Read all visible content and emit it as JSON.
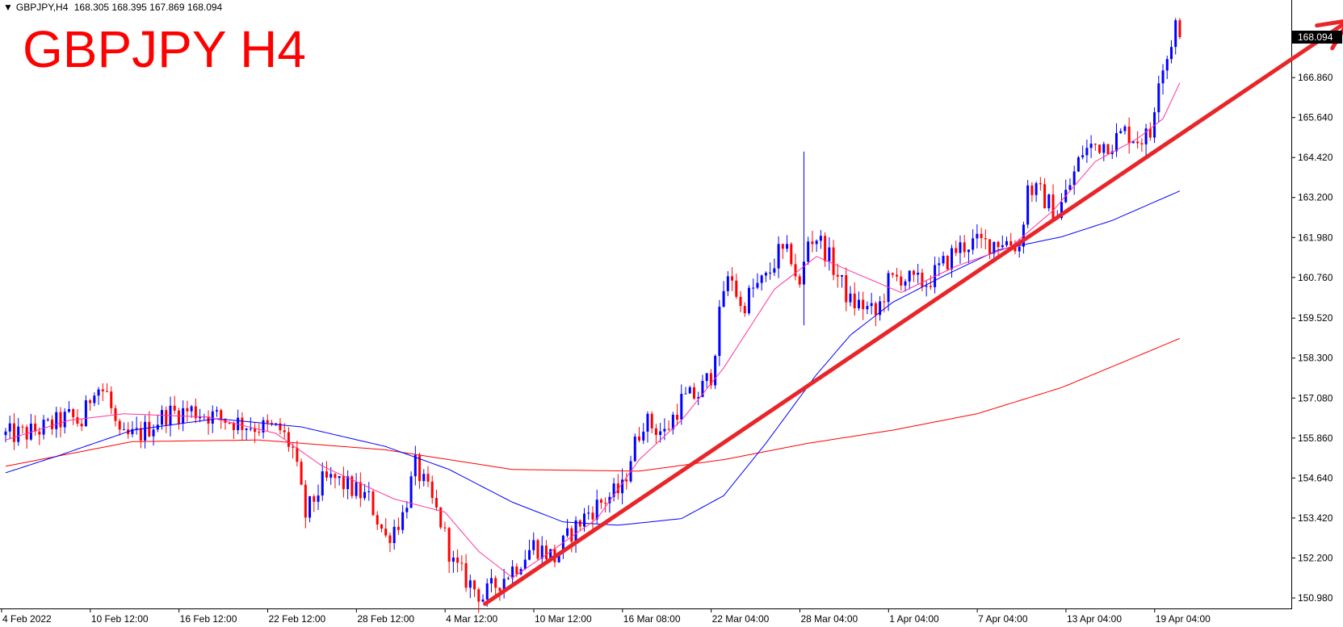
{
  "header": {
    "symbol_timeframe": "GBPJPY,H4",
    "ohlc": "168.305 168.395 167.869 168.094"
  },
  "title": "GBPJPY H4",
  "colors": {
    "bull": "#0000ff",
    "bear": "#ff0000",
    "ma_fast": "#ff3399",
    "ma_mid": "#0000ff",
    "ma_slow": "#ff0000",
    "trendline": "#e8262a",
    "current_price_bg": "#000000"
  },
  "chart_data": {
    "type": "candlestick",
    "title": "GBPJPY H4",
    "ylim": [
      150.5,
      169.3
    ],
    "y_ticks": [
      "166.860",
      "165.640",
      "164.420",
      "163.200",
      "161.980",
      "160.760",
      "159.520",
      "158.300",
      "157.080",
      "155.860",
      "154.640",
      "153.420",
      "152.200",
      "150.980"
    ],
    "current_price": "168.094",
    "x_labels": [
      "4 Feb 2022",
      "10 Feb 12:00",
      "16 Feb 12:00",
      "22 Feb 12:00",
      "28 Feb 12:00",
      "4 Mar 12:00",
      "10 Mar 12:00",
      "16 Mar 08:00",
      "22 Mar 04:00",
      "28 Mar 04:00",
      "1 Apr 04:00",
      "7 Apr 04:00",
      "13 Apr 04:00",
      "19 Apr 04:00"
    ],
    "x_label_index": [
      0,
      21,
      42,
      63,
      84,
      105,
      126,
      147,
      168,
      189,
      210,
      231,
      252,
      273
    ],
    "close_anchors": [
      [
        0,
        155.95
      ],
      [
        5,
        156.0
      ],
      [
        10,
        156.2
      ],
      [
        15,
        156.5
      ],
      [
        18,
        156.3
      ],
      [
        21,
        157.5
      ],
      [
        24,
        157.2
      ],
      [
        27,
        155.8
      ],
      [
        32,
        156.0
      ],
      [
        38,
        156.6
      ],
      [
        44,
        156.7
      ],
      [
        50,
        156.5
      ],
      [
        56,
        156.3
      ],
      [
        60,
        156.2
      ],
      [
        65,
        156.1
      ],
      [
        68,
        155.5
      ],
      [
        71,
        153.5
      ],
      [
        75,
        154.5
      ],
      [
        78,
        154.6
      ],
      [
        82,
        154.3
      ],
      [
        86,
        154.0
      ],
      [
        90,
        152.8
      ],
      [
        94,
        153.5
      ],
      [
        97,
        155.0
      ],
      [
        100,
        154.2
      ],
      [
        103,
        153.3
      ],
      [
        106,
        152.0
      ],
      [
        110,
        151.4
      ],
      [
        113,
        151.0
      ],
      [
        117,
        151.5
      ],
      [
        121,
        152.0
      ],
      [
        125,
        152.6
      ],
      [
        130,
        152.2
      ],
      [
        134,
        153.0
      ],
      [
        138,
        153.6
      ],
      [
        142,
        154.0
      ],
      [
        146,
        154.3
      ],
      [
        148,
        155.3
      ],
      [
        151,
        156.4
      ],
      [
        156,
        156.0
      ],
      [
        160,
        157.0
      ],
      [
        164,
        157.2
      ],
      [
        167,
        157.8
      ],
      [
        170,
        160.4
      ],
      [
        172,
        160.8
      ],
      [
        174,
        159.8
      ],
      [
        177,
        160.4
      ],
      [
        180,
        160.7
      ],
      [
        183,
        161.5
      ],
      [
        186,
        161.4
      ],
      [
        188,
        160.4
      ],
      [
        190,
        161.9
      ],
      [
        192,
        162.0
      ],
      [
        194,
        161.6
      ],
      [
        197,
        160.8
      ],
      [
        200,
        160.0
      ],
      [
        203,
        159.9
      ],
      [
        206,
        159.6
      ],
      [
        209,
        160.6
      ],
      [
        212,
        160.8
      ],
      [
        215,
        160.6
      ],
      [
        218,
        160.6
      ],
      [
        221,
        161.0
      ],
      [
        225,
        161.6
      ],
      [
        228,
        161.8
      ],
      [
        232,
        161.8
      ],
      [
        236,
        161.9
      ],
      [
        240,
        161.7
      ],
      [
        242,
        163.5
      ],
      [
        245,
        163.3
      ],
      [
        249,
        162.7
      ],
      [
        252,
        163.6
      ],
      [
        255,
        164.6
      ],
      [
        258,
        164.8
      ],
      [
        262,
        164.9
      ],
      [
        265,
        165.2
      ],
      [
        268,
        165.0
      ],
      [
        271,
        165.1
      ],
      [
        273,
        167.0
      ],
      [
        275,
        167.5
      ],
      [
        277,
        168.5
      ],
      [
        278,
        168.094
      ]
    ],
    "events": [
      [
        189,
        164.6,
        159.3
      ]
    ],
    "ma_fast": [
      [
        0,
        155.8
      ],
      [
        15,
        156.4
      ],
      [
        28,
        156.6
      ],
      [
        48,
        156.5
      ],
      [
        64,
        156.0
      ],
      [
        75,
        155.0
      ],
      [
        92,
        154.0
      ],
      [
        104,
        153.6
      ],
      [
        112,
        152.4
      ],
      [
        120,
        151.6
      ],
      [
        128,
        152.3
      ],
      [
        140,
        153.4
      ],
      [
        150,
        155.2
      ],
      [
        160,
        156.4
      ],
      [
        170,
        158.0
      ],
      [
        182,
        160.4
      ],
      [
        192,
        161.4
      ],
      [
        201,
        160.9
      ],
      [
        212,
        160.3
      ],
      [
        225,
        161.1
      ],
      [
        238,
        161.7
      ],
      [
        248,
        162.8
      ],
      [
        258,
        164.3
      ],
      [
        268,
        165.0
      ],
      [
        274,
        165.6
      ],
      [
        278,
        166.7
      ]
    ],
    "ma_mid": [
      [
        0,
        154.8
      ],
      [
        12,
        155.3
      ],
      [
        30,
        156.1
      ],
      [
        50,
        156.45
      ],
      [
        70,
        156.2
      ],
      [
        90,
        155.6
      ],
      [
        105,
        154.9
      ],
      [
        120,
        153.9
      ],
      [
        132,
        153.3
      ],
      [
        145,
        153.2
      ],
      [
        160,
        153.4
      ],
      [
        170,
        154.1
      ],
      [
        180,
        155.7
      ],
      [
        192,
        157.8
      ],
      [
        200,
        159.0
      ],
      [
        210,
        160.0
      ],
      [
        222,
        160.8
      ],
      [
        235,
        161.6
      ],
      [
        250,
        162.0
      ],
      [
        262,
        162.5
      ],
      [
        278,
        163.4
      ]
    ],
    "ma_slow": [
      [
        0,
        155.0
      ],
      [
        30,
        155.75
      ],
      [
        60,
        155.8
      ],
      [
        90,
        155.5
      ],
      [
        120,
        154.9
      ],
      [
        150,
        154.85
      ],
      [
        170,
        155.2
      ],
      [
        190,
        155.7
      ],
      [
        210,
        156.1
      ],
      [
        230,
        156.6
      ],
      [
        250,
        157.4
      ],
      [
        265,
        158.2
      ],
      [
        278,
        158.9
      ]
    ],
    "trendline": {
      "from": [
        113.5,
        150.8
      ],
      "to": [
        318,
        168.6
      ],
      "arrow": true
    }
  }
}
